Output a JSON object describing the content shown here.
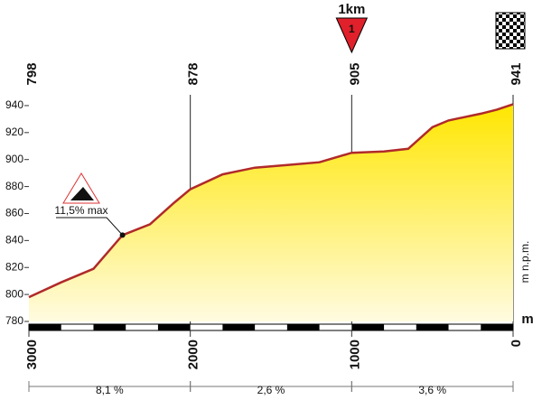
{
  "chart_data": {
    "type": "area",
    "x": [
      3000,
      2800,
      2600,
      2420,
      2250,
      2100,
      2000,
      1800,
      1600,
      1400,
      1200,
      1000,
      800,
      650,
      500,
      400,
      200,
      100,
      0
    ],
    "values": [
      798,
      809,
      819,
      844,
      852,
      868,
      878,
      889,
      894,
      896,
      898,
      905,
      906,
      908,
      924,
      929,
      934,
      937,
      941
    ],
    "xlim": [
      3000,
      0
    ],
    "ylim": [
      780,
      950
    ],
    "xticks": [
      3000,
      2000,
      1000,
      0
    ],
    "yticks": [
      780,
      800,
      820,
      840,
      860,
      880,
      900,
      920,
      940
    ],
    "y_unit": "m n.p.m.",
    "x_unit": "m",
    "line_color": "#b02a2a",
    "fill_color": "#ffe600",
    "checkpoints": [
      {
        "x": 3000,
        "elevation": 798
      },
      {
        "x": 2000,
        "elevation": 878
      },
      {
        "x": 1000,
        "elevation": 905
      },
      {
        "x": 0,
        "elevation": 941
      }
    ],
    "km_marker": {
      "x": 1000,
      "label": "1km",
      "number": 1
    },
    "max_gradient": {
      "x": 2420,
      "y": 844,
      "label": "11,5% max"
    },
    "segments": [
      {
        "from": 3000,
        "to": 2000,
        "label": "8,1 %"
      },
      {
        "from": 2000,
        "to": 1000,
        "label": "2,6 %"
      },
      {
        "from": 1000,
        "to": 0,
        "label": "3,6 %"
      }
    ]
  }
}
